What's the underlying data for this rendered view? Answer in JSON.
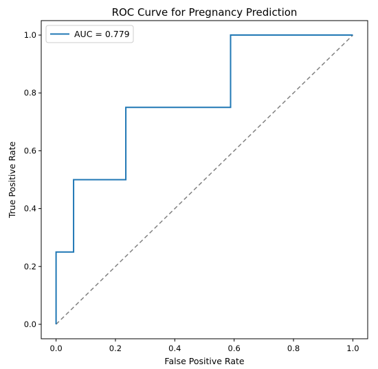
{
  "chart_data": {
    "type": "line",
    "title": "ROC Curve for Pregnancy Prediction",
    "xlabel": "False Positive Rate",
    "ylabel": "True Positive Rate",
    "xlim": [
      -0.05,
      1.05
    ],
    "ylim": [
      -0.05,
      1.05
    ],
    "x_ticks": [
      "0.0",
      "0.2",
      "0.4",
      "0.6",
      "0.8",
      "1.0"
    ],
    "y_ticks": [
      "0.0",
      "0.2",
      "0.4",
      "0.6",
      "0.8",
      "1.0"
    ],
    "x_tick_values": [
      0,
      0.2,
      0.4,
      0.6,
      0.8,
      1.0
    ],
    "y_tick_values": [
      0,
      0.2,
      0.4,
      0.6,
      0.8,
      1.0
    ],
    "grid": false,
    "legend_position": "top-left",
    "series": [
      {
        "name": "AUC = 0.779",
        "color": "#1f77b4",
        "style": "solid",
        "x": [
          0,
          0,
          0.059,
          0.059,
          0.235,
          0.235,
          0.588,
          0.588,
          1.0
        ],
        "y": [
          0,
          0.25,
          0.25,
          0.5,
          0.5,
          0.75,
          0.75,
          1.0,
          1.0
        ]
      },
      {
        "color": "#808080",
        "style": "dashed",
        "x": [
          0,
          1
        ],
        "y": [
          0,
          1
        ]
      }
    ]
  }
}
